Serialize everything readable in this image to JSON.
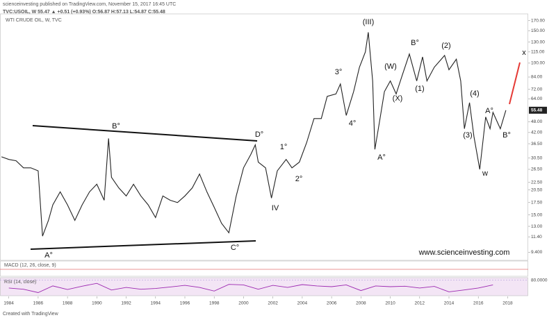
{
  "header": {
    "published": "scienceinvesting published on TradingView.com, November 15, 2017 16:45 UTC",
    "quote": "TVC:USOIL, W 55.47 ▲ +0.51 (+0.93%) O:56.87 H:57.13 L:54.87 C:55.48",
    "footer": "Created with TradingView"
  },
  "chart_data": {
    "type": "line",
    "title": "WTI CRUDE OIL, W, TVC",
    "color": "#222222",
    "log_scale": true,
    "x": [
      1983.5,
      1984,
      1984.5,
      1985,
      1985.5,
      1986,
      1986.3,
      1986.7,
      1987,
      1987.5,
      1988,
      1988.5,
      1989,
      1989.5,
      1990,
      1990.5,
      1990.8,
      1991,
      1991.5,
      1992,
      1992.5,
      1993,
      1993.5,
      1994,
      1994.5,
      1995,
      1995.5,
      1996,
      1996.5,
      1997,
      1997.5,
      1998,
      1998.5,
      1999,
      1999.5,
      2000,
      2000.5,
      2000.8,
      2001,
      2001.5,
      2001.9,
      2002.3,
      2002.9,
      2003.3,
      2003.8,
      2004.3,
      2004.8,
      2005.3,
      2005.7,
      2006.3,
      2006.6,
      2007,
      2007.5,
      2007.9,
      2008.3,
      2008.5,
      2008.8,
      2008.95,
      2009.3,
      2009.6,
      2010,
      2010.4,
      2010.8,
      2011.3,
      2011.8,
      2012.2,
      2012.5,
      2013,
      2013.7,
      2014,
      2014.5,
      2014.8,
      2015.05,
      2015.4,
      2015.7,
      2016.1,
      2016.5,
      2016.8,
      2017,
      2017.5,
      2017.88
    ],
    "values": [
      31,
      30,
      29.5,
      27,
      27,
      26,
      11.5,
      14,
      17,
      20,
      17,
      14,
      17,
      20,
      22,
      18,
      39,
      24,
      21,
      19,
      22,
      19,
      17,
      14.5,
      19,
      18,
      17.5,
      19,
      21,
      25,
      20,
      16.5,
      13.5,
      12,
      19,
      27,
      32,
      36,
      29,
      27,
      18.5,
      26,
      30,
      27,
      29,
      37,
      50,
      50,
      66,
      68,
      77,
      52,
      70,
      95,
      115,
      147,
      80,
      34,
      50,
      70,
      80,
      68,
      85,
      112,
      80,
      108,
      80,
      95,
      110,
      92,
      105,
      80,
      44,
      61,
      40,
      26.5,
      51,
      44,
      54,
      44,
      55.48
    ],
    "xlim": [
      1983.4,
      2019.4
    ],
    "xticks": [
      1984,
      1986,
      1988,
      1990,
      1992,
      1994,
      1996,
      1998,
      2000,
      2002,
      2004,
      2006,
      2008,
      2010,
      2012,
      2014,
      2016,
      2018
    ],
    "ylim": [
      8.5,
      185
    ],
    "yticks": [
      {
        "value": 9.4,
        "label": "9.400"
      },
      {
        "value": 11.4,
        "label": "11.40"
      },
      {
        "value": 13,
        "label": "13.00"
      },
      {
        "value": 15,
        "label": "15.00"
      },
      {
        "value": 17.5,
        "label": "17.50"
      },
      {
        "value": 20.5,
        "label": "20.50"
      },
      {
        "value": 22.5,
        "label": "22.50"
      },
      {
        "value": 26.5,
        "label": "26.50"
      },
      {
        "value": 30.5,
        "label": "30.50"
      },
      {
        "value": 36.5,
        "label": "36.50"
      },
      {
        "value": 42,
        "label": "42.00"
      },
      {
        "value": 48,
        "label": "48.00"
      },
      {
        "value": 64,
        "label": "64.00"
      },
      {
        "value": 72,
        "label": "72.00"
      },
      {
        "value": 84,
        "label": "84.00"
      },
      {
        "value": 100,
        "label": "100.00"
      },
      {
        "value": 115,
        "label": "115.00"
      },
      {
        "value": 130,
        "label": "130.00"
      },
      {
        "value": 150,
        "label": "150.00"
      },
      {
        "value": 170,
        "label": "170.00"
      }
    ],
    "last_price": {
      "value": 55.48,
      "label": "55.48"
    },
    "annotations": [
      "(III)",
      "B°",
      "D°",
      "A°",
      "C°",
      "1°",
      "2°",
      "IV",
      "3°",
      "4°",
      "(W)",
      "(X)",
      "A°",
      "B°",
      "(1)",
      "(2)",
      "(3)",
      "(4)",
      "A°",
      "B°",
      "w",
      "x",
      "www.scienceinvesting.com"
    ],
    "macd_label": "MACD (12, 26, close, 9)",
    "rsi": {
      "label": "RSI (14, close)",
      "color": "#9c27b0",
      "x": [
        1984,
        1985,
        1986,
        1987,
        1988,
        1989,
        1990,
        1991,
        1992,
        1993,
        1994,
        1995,
        1996,
        1997,
        1998,
        1999,
        2000,
        2001,
        2002,
        2003,
        2004,
        2005,
        2006,
        2007,
        2008,
        2009,
        2010,
        2011,
        2012,
        2013,
        2014,
        2015,
        2016,
        2017
      ],
      "values": [
        50,
        45,
        32,
        58,
        44,
        57,
        68,
        42,
        52,
        45,
        48,
        54,
        60,
        52,
        38,
        64,
        62,
        45,
        60,
        52,
        63,
        58,
        55,
        62,
        40,
        58,
        55,
        57,
        50,
        56,
        35,
        42,
        50,
        62
      ],
      "ylim": [
        20,
        90
      ],
      "yticks": [
        {
          "value": 80,
          "label": "80.0000"
        }
      ]
    }
  }
}
